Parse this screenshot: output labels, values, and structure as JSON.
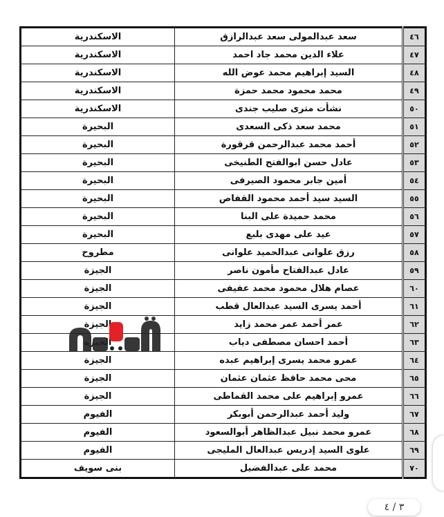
{
  "rows": [
    {
      "num": "٤٦",
      "name": "سعد عبدالمولى سعد عبدالرازق",
      "gov": "الاسكندرية"
    },
    {
      "num": "٤٧",
      "name": "علاء الدين محمد جاد احمد",
      "gov": "الاسكندرية"
    },
    {
      "num": "٤٨",
      "name": "السيد إبراهيم محمد عوض الله",
      "gov": "الاسكندرية"
    },
    {
      "num": "٤٩",
      "name": "محمد محمود محمد حمزة",
      "gov": "الاسكندرية"
    },
    {
      "num": "٥٠",
      "name": "نشأت مترى صليب جندى",
      "gov": "الاسكندرية"
    },
    {
      "num": "٥١",
      "name": "محمد سعد ذكى السعدى",
      "gov": "البحيرة"
    },
    {
      "num": "٥٢",
      "name": "أحمد محمد عبدالرحمن قرقورة",
      "gov": "البحيرة"
    },
    {
      "num": "٥٣",
      "name": "عادل حسن ابوالفتح الطنيخى",
      "gov": "البحيرة"
    },
    {
      "num": "٥٤",
      "name": "أمين جابر محمود الصيرفى",
      "gov": "البحيرة"
    },
    {
      "num": "٥٥",
      "name": "السيد سيد أحمد محمود القفاص",
      "gov": "البحيرة"
    },
    {
      "num": "٥٦",
      "name": "محمد حميدة على البنا",
      "gov": "البحيرة"
    },
    {
      "num": "٥٧",
      "name": "عيد على مهدى بلبع",
      "gov": "البحيرة"
    },
    {
      "num": "٥٨",
      "name": "رزق علوانى عبدالحميد علوانى",
      "gov": "مطروح"
    },
    {
      "num": "٥٩",
      "name": "عادل عبدالفتاح مأمون ناصر",
      "gov": "الجيزة"
    },
    {
      "num": "٦٠",
      "name": "عصام هلال محمود محمد عفيفى",
      "gov": "الجيزة"
    },
    {
      "num": "٦١",
      "name": "أحمد يسرى السيد عبدالعال قطب",
      "gov": "الجيزة"
    },
    {
      "num": "٦٢",
      "name": "عمر أحمد عمر محمد زايد",
      "gov": "الجيزة"
    },
    {
      "num": "٦٣",
      "name": "أحمد احسان مصطفى دياب",
      "gov": "الجيزه"
    },
    {
      "num": "٦٤",
      "name": "عمرو محمد يسرى إبراهيم عبده",
      "gov": "الجيزة"
    },
    {
      "num": "٦٥",
      "name": "محى محمد حافظ عثمان عثمان",
      "gov": "الجيزة"
    },
    {
      "num": "٦٦",
      "name": "عمرو إبراهيم على محمد القماطى",
      "gov": "الجيزة"
    },
    {
      "num": "٦٧",
      "name": "وليد أحمد عبدالرحمن أبوبكر",
      "gov": "الفيوم"
    },
    {
      "num": "٦٨",
      "name": "عمرو محمد نبيل عبدالظاهر أبوالسعود",
      "gov": "الفيوم"
    },
    {
      "num": "٦٩",
      "name": "علوى السيد إدريس عبدالعال المليجى",
      "gov": "الفيوم"
    },
    {
      "num": "٧٠",
      "name": "محمد على عبدالفضيل",
      "gov": "بنى سويف"
    }
  ],
  "watermark": {
    "text": "ڤيتو",
    "colors": {
      "dark": "#222222",
      "accent": "#e32228"
    }
  },
  "pager": {
    "label": "٣ / ٤"
  }
}
